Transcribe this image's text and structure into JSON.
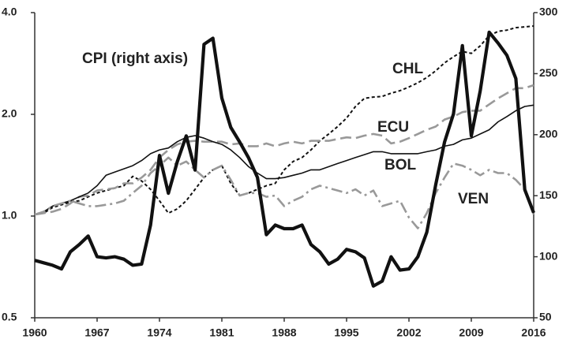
{
  "chart_data": {
    "type": "line",
    "x": [
      1960,
      1961,
      1962,
      1963,
      1964,
      1965,
      1966,
      1967,
      1968,
      1969,
      1970,
      1971,
      1972,
      1973,
      1974,
      1975,
      1976,
      1977,
      1978,
      1979,
      1980,
      1981,
      1982,
      1983,
      1984,
      1985,
      1986,
      1987,
      1988,
      1989,
      1990,
      1991,
      1992,
      1993,
      1994,
      1995,
      1996,
      1997,
      1998,
      1999,
      2000,
      2001,
      2002,
      2003,
      2004,
      2005,
      2006,
      2007,
      2008,
      2009,
      2010,
      2011,
      2012,
      2013,
      2014,
      2015,
      2016
    ],
    "xlim": [
      1960,
      2016
    ],
    "xticks": [
      1960,
      1967,
      1974,
      1981,
      1988,
      1995,
      2002,
      2009,
      2016
    ],
    "ylim": [
      0.5,
      4
    ],
    "log_y": true,
    "yticks": [
      0.5,
      {
        "value": 1,
        "label": "1.0"
      },
      {
        "value": 2,
        "label": "2.0"
      },
      {
        "value": 4,
        "label": "4.0"
      }
    ],
    "y2lim": [
      50,
      300
    ],
    "y2ticks": [
      50,
      100,
      150,
      200,
      250,
      300
    ],
    "grid": false,
    "series": [
      {
        "name": "CHL",
        "color": "#111111",
        "dash": "dotted",
        "values": [
          1.01,
          1.02,
          1.06,
          1.08,
          1.1,
          1.11,
          1.14,
          1.17,
          1.19,
          1.21,
          1.23,
          1.31,
          1.27,
          1.2,
          1.11,
          1.02,
          1.05,
          1.11,
          1.2,
          1.3,
          1.37,
          1.41,
          1.25,
          1.15,
          1.17,
          1.2,
          1.23,
          1.25,
          1.37,
          1.45,
          1.49,
          1.57,
          1.67,
          1.75,
          1.84,
          1.95,
          2.11,
          2.23,
          2.25,
          2.26,
          2.31,
          2.35,
          2.41,
          2.48,
          2.57,
          2.69,
          2.84,
          2.96,
          3.07,
          3.03,
          3.19,
          3.42,
          3.52,
          3.55,
          3.61,
          3.63,
          3.65
        ]
      },
      {
        "name": "ECU",
        "color": "#999999",
        "dash": "long",
        "values": [
          1.01,
          1.02,
          1.03,
          1.05,
          1.09,
          1.14,
          1.15,
          1.19,
          1.2,
          1.21,
          1.25,
          1.25,
          1.3,
          1.37,
          1.49,
          1.57,
          1.63,
          1.66,
          1.67,
          1.66,
          1.66,
          1.66,
          1.63,
          1.64,
          1.61,
          1.61,
          1.64,
          1.61,
          1.64,
          1.66,
          1.64,
          1.67,
          1.67,
          1.67,
          1.69,
          1.71,
          1.7,
          1.73,
          1.75,
          1.73,
          1.64,
          1.66,
          1.7,
          1.75,
          1.8,
          1.84,
          1.93,
          1.97,
          2.03,
          2.05,
          2.05,
          2.14,
          2.23,
          2.31,
          2.39,
          2.39,
          2.44
        ]
      },
      {
        "name": "BOL",
        "color": "#111111",
        "dash": "solid",
        "values": [
          1.01,
          1.03,
          1.07,
          1.09,
          1.11,
          1.14,
          1.17,
          1.23,
          1.32,
          1.35,
          1.38,
          1.41,
          1.46,
          1.53,
          1.57,
          1.59,
          1.66,
          1.71,
          1.73,
          1.7,
          1.66,
          1.63,
          1.57,
          1.49,
          1.4,
          1.34,
          1.29,
          1.29,
          1.3,
          1.32,
          1.34,
          1.37,
          1.37,
          1.4,
          1.43,
          1.46,
          1.49,
          1.52,
          1.55,
          1.55,
          1.53,
          1.53,
          1.53,
          1.53,
          1.55,
          1.57,
          1.61,
          1.63,
          1.68,
          1.7,
          1.75,
          1.8,
          1.9,
          1.97,
          2.05,
          2.11,
          2.13
        ]
      },
      {
        "name": "VEN",
        "color": "#999999",
        "dash": "dashdot",
        "values": [
          1.01,
          1.03,
          1.07,
          1.09,
          1.11,
          1.09,
          1.07,
          1.07,
          1.08,
          1.09,
          1.11,
          1.17,
          1.23,
          1.34,
          1.41,
          1.49,
          1.41,
          1.45,
          1.37,
          1.3,
          1.37,
          1.41,
          1.28,
          1.15,
          1.17,
          1.17,
          1.14,
          1.15,
          1.07,
          1.11,
          1.14,
          1.2,
          1.23,
          1.21,
          1.19,
          1.17,
          1.2,
          1.15,
          1.19,
          1.07,
          1.09,
          1.11,
          0.99,
          0.92,
          1.02,
          1.17,
          1.3,
          1.43,
          1.41,
          1.37,
          1.32,
          1.37,
          1.34,
          1.34,
          1.28,
          1.2,
          1.01
        ]
      },
      {
        "name": "CPI (right axis)",
        "color": "#111111",
        "dash": "thick",
        "axis": "y2",
        "values": [
          97,
          95,
          93,
          90,
          104,
          110,
          117,
          100,
          99,
          100,
          98,
          93,
          94,
          126,
          183,
          152,
          178,
          199,
          171,
          274,
          279,
          230,
          206,
          194,
          181,
          165,
          118,
          126,
          123,
          123,
          126,
          110,
          104,
          94,
          98,
          106,
          104,
          99,
          76,
          80,
          100,
          89,
          90,
          100,
          120,
          159,
          194,
          217,
          273,
          199,
          236,
          284,
          275,
          265,
          246,
          155,
          136
        ]
      }
    ]
  }
}
